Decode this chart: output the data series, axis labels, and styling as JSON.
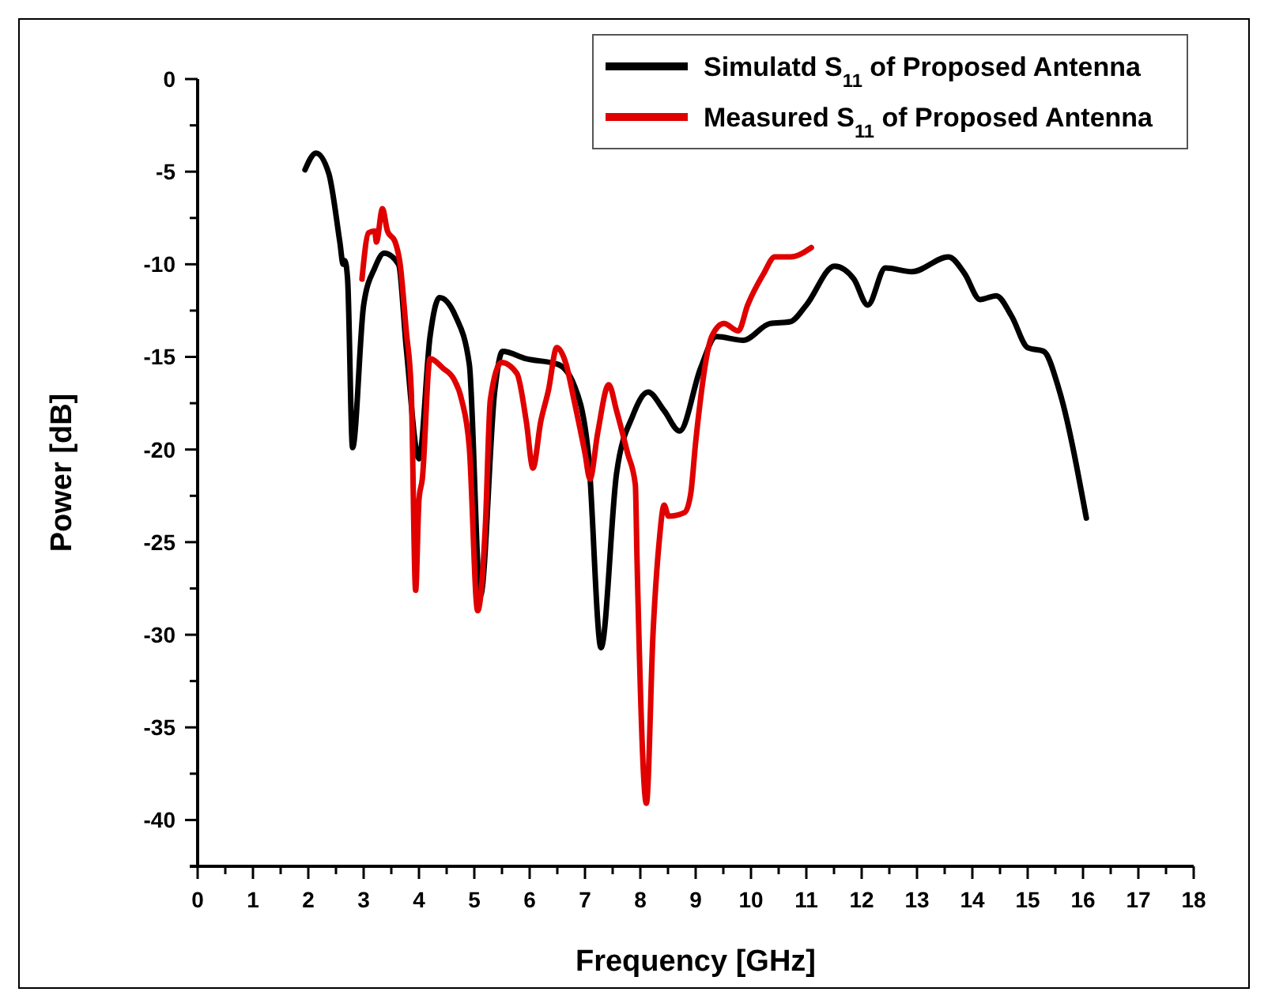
{
  "chart_data": {
    "type": "line",
    "xlabel": "Frequency [GHz]",
    "ylabel": "Power [dB]",
    "xlim": [
      0,
      18
    ],
    "ylim": [
      -42.5,
      0
    ],
    "xticks": [
      0,
      {
        "value": 0.5,
        "label": null
      },
      1,
      {
        "value": 1.5,
        "label": null
      },
      2,
      {
        "value": 2.5,
        "label": null
      },
      3,
      {
        "value": 3.5,
        "label": null
      },
      4,
      {
        "value": 4.5,
        "label": null
      },
      5,
      {
        "value": 5.5,
        "label": null
      },
      6,
      {
        "value": 6.5,
        "label": null
      },
      7,
      {
        "value": 7.5,
        "label": null
      },
      8,
      {
        "value": 8.5,
        "label": null
      },
      9,
      {
        "value": 9.5,
        "label": null
      },
      10,
      {
        "value": 10.5,
        "label": null
      },
      11,
      {
        "value": 11.5,
        "label": null
      },
      12,
      {
        "value": 12.5,
        "label": null
      },
      13,
      {
        "value": 13.5,
        "label": null
      },
      14,
      {
        "value": 14.5,
        "label": null
      },
      15,
      {
        "value": 15.5,
        "label": null
      },
      16,
      {
        "value": 16.5,
        "label": null
      },
      17,
      {
        "value": 17.5,
        "label": null
      },
      18
    ],
    "yticks": [
      {
        "value": -42.5,
        "label": null
      },
      -40,
      {
        "value": -37.5,
        "label": null
      },
      -35,
      {
        "value": -32.5,
        "label": null
      },
      -30,
      {
        "value": -27.5,
        "label": null
      },
      -25,
      {
        "value": -22.5,
        "label": null
      },
      -20,
      {
        "value": -17.5,
        "label": null
      },
      -15,
      {
        "value": -12.5,
        "label": null
      },
      -10,
      {
        "value": -7.5,
        "label": null
      },
      -5,
      {
        "value": -2.5,
        "label": null
      },
      0
    ],
    "grid": false,
    "legend": "top right",
    "marker": "none",
    "line_style": "solid",
    "series": [
      {
        "name": "Simulatd S$_{11}$ of Proposed Antenna",
        "color": "#000000",
        "x": [
          1.94,
          2.14,
          2.37,
          2.57,
          2.63,
          2.66,
          2.71,
          2.8,
          3.0,
          3.2,
          3.37,
          3.63,
          3.77,
          4.0,
          4.2,
          4.37,
          4.66,
          4.91,
          5.11,
          5.37,
          5.51,
          5.94,
          6.51,
          6.8,
          7.06,
          7.29,
          7.57,
          7.86,
          8.14,
          8.43,
          8.71,
          9.09,
          9.37,
          9.86,
          10.34,
          10.71,
          11.0,
          11.51,
          11.86,
          12.11,
          12.43,
          12.91,
          13.57,
          13.86,
          14.14,
          14.43,
          14.71,
          15.0,
          15.29,
          15.57,
          16.06
        ],
        "values": [
          -4.9,
          -4.0,
          -5.1,
          -8.8,
          -10.0,
          -9.8,
          -10.8,
          -19.9,
          -12.2,
          -10.2,
          -9.4,
          -10.0,
          -14.5,
          -20.5,
          -13.9,
          -11.8,
          -12.8,
          -15.4,
          -27.9,
          -16.8,
          -14.7,
          -15.1,
          -15.4,
          -16.5,
          -20.2,
          -30.7,
          -21.3,
          -18.2,
          -16.9,
          -17.9,
          -19.0,
          -15.6,
          -13.9,
          -14.1,
          -13.2,
          -13.1,
          -12.2,
          -10.1,
          -10.8,
          -12.2,
          -10.2,
          -10.4,
          -9.6,
          -10.5,
          -11.9,
          -11.7,
          -12.8,
          -14.5,
          -14.7,
          -16.8,
          -23.7
        ]
      },
      {
        "name": "Measured S$_{11}$ of Proposed Antenna",
        "color": "#e00000",
        "x": [
          2.97,
          3.09,
          3.2,
          3.23,
          3.34,
          3.43,
          3.57,
          3.66,
          3.77,
          3.86,
          3.94,
          4.0,
          4.06,
          4.2,
          4.43,
          4.63,
          4.77,
          4.91,
          5.06,
          5.2,
          5.29,
          5.49,
          5.77,
          5.94,
          6.06,
          6.2,
          6.34,
          6.49,
          6.66,
          6.8,
          7.0,
          7.09,
          7.23,
          7.43,
          7.57,
          7.77,
          7.91,
          7.94,
          8.11,
          8.23,
          8.34,
          8.43,
          8.51,
          8.8,
          8.91,
          9.0,
          9.29,
          9.51,
          9.77,
          9.94,
          10.23,
          10.43,
          10.71,
          11.09
        ],
        "values": [
          -10.8,
          -8.3,
          -8.2,
          -8.8,
          -7.0,
          -8.2,
          -8.8,
          -10.0,
          -13.6,
          -16.8,
          -27.6,
          -22.7,
          -21.6,
          -15.1,
          -15.6,
          -16.2,
          -17.3,
          -19.9,
          -28.7,
          -24.1,
          -17.3,
          -15.3,
          -15.9,
          -18.5,
          -21.0,
          -18.5,
          -16.8,
          -14.5,
          -15.4,
          -17.3,
          -20.2,
          -21.6,
          -19.1,
          -16.5,
          -17.9,
          -20.2,
          -21.9,
          -25.9,
          -39.1,
          -29.9,
          -25.0,
          -23.0,
          -23.6,
          -23.4,
          -22.4,
          -19.6,
          -13.9,
          -13.2,
          -13.6,
          -12.2,
          -10.5,
          -9.6,
          -9.6,
          -9.1
        ]
      }
    ]
  }
}
